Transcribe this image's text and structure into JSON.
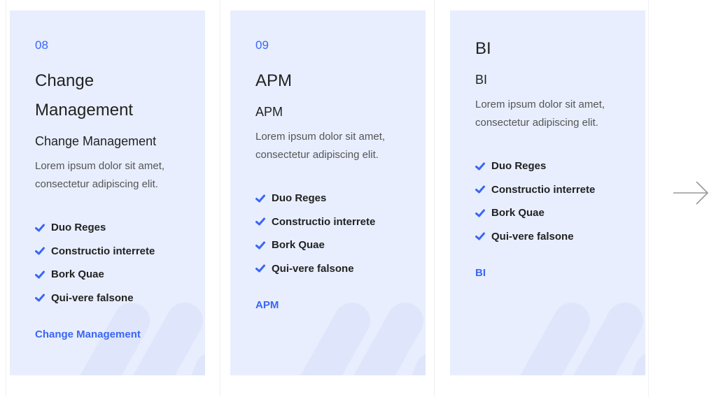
{
  "colors": {
    "accent": "#3a66f5",
    "card_bg": "#e8eefd"
  },
  "cards": [
    {
      "number": "08",
      "title": "Change Management",
      "subtitle": "Change Management",
      "description": "Lorem ipsum dolor sit amet, consectetur adipiscing elit.",
      "features": [
        "Duo Reges",
        "Constructio interrete",
        "Bork Quae",
        "Qui-vere falsone"
      ],
      "link": "Change Management"
    },
    {
      "number": "09",
      "title": "APM",
      "subtitle": "APM",
      "description": "Lorem ipsum dolor sit amet, consectetur adipiscing elit.",
      "features": [
        "Duo Reges",
        "Constructio interrete",
        "Bork Quae",
        "Qui-vere falsone"
      ],
      "link": "APM"
    },
    {
      "title": "BI",
      "subtitle": "BI",
      "description": "Lorem ipsum dolor sit amet, consectetur adipiscing elit.",
      "features": [
        "Duo Reges",
        "Constructio interrete",
        "Bork Quae",
        "Qui-vere falsone"
      ],
      "link": "BI"
    }
  ],
  "navigation": {
    "next_icon": "arrow-right-icon"
  }
}
